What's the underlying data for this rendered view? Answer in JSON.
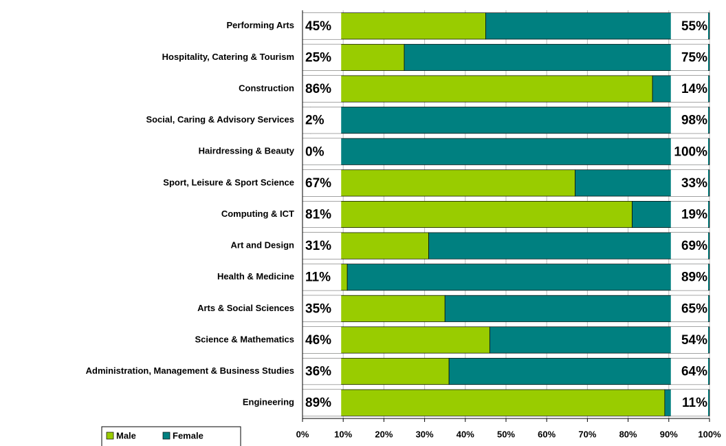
{
  "chart_data": {
    "type": "stacked-barh",
    "categories": [
      "Performing Arts",
      "Hospitality, Catering & Tourism",
      "Construction",
      "Social, Caring & Advisory Services",
      "Hairdressing & Beauty",
      "Sport, Leisure & Sport Science",
      "Computing & ICT",
      "Art and Design",
      "Health & Medicine",
      "Arts & Social Sciences",
      "Science & Mathematics",
      "Administration, Management  & Business Studies",
      "Engineering"
    ],
    "series": [
      {
        "name": "Male",
        "color": "#99cc00",
        "values": [
          45,
          25,
          86,
          2,
          0,
          67,
          81,
          31,
          11,
          35,
          46,
          36,
          89
        ],
        "value_labels": [
          "45%",
          "25%",
          "86%",
          "2%",
          "0%",
          "67%",
          "81%",
          "31%",
          "11%",
          "35%",
          "46%",
          "36%",
          "89%"
        ]
      },
      {
        "name": "Female",
        "color": "#008080",
        "values": [
          55,
          75,
          14,
          98,
          100,
          33,
          19,
          69,
          89,
          65,
          54,
          64,
          11
        ],
        "value_labels": [
          "55%",
          "75%",
          "14%",
          "98%",
          "100%",
          "33%",
          "19%",
          "69%",
          "89%",
          "65%",
          "54%",
          "64%",
          "11%"
        ]
      }
    ],
    "xlim": [
      0,
      100
    ],
    "xticks": [
      {
        "value": 0,
        "label": "0%"
      },
      {
        "value": 10,
        "label": "10%"
      },
      {
        "value": 20,
        "label": "20%"
      },
      {
        "value": 30,
        "label": "30%"
      },
      {
        "value": 40,
        "label": "40%"
      },
      {
        "value": 50,
        "label": "50%"
      },
      {
        "value": 60,
        "label": "60%"
      },
      {
        "value": 70,
        "label": "70%"
      },
      {
        "value": 80,
        "label": "80%"
      },
      {
        "value": 90,
        "label": "90%"
      },
      {
        "value": 100,
        "label": "100%"
      }
    ],
    "grid": true,
    "legend": "bottom-left"
  }
}
